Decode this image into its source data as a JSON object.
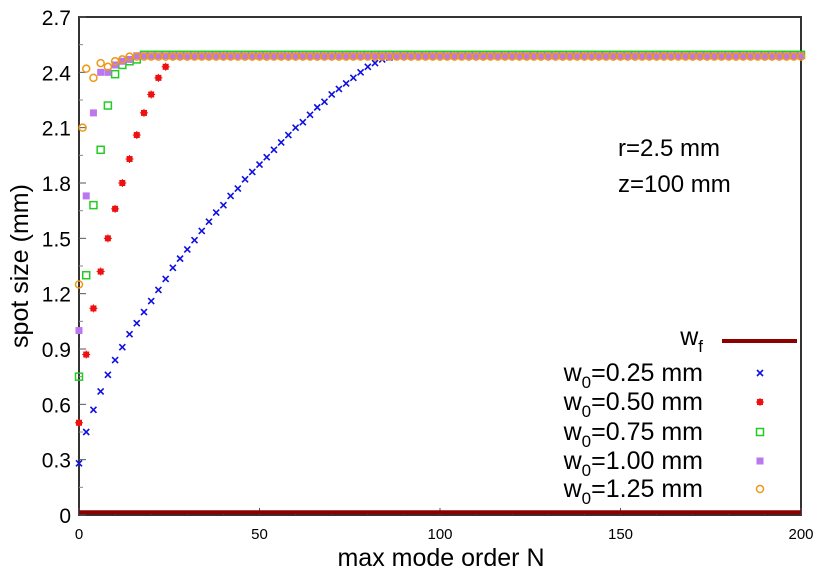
{
  "chart_data": {
    "type": "scatter",
    "title": "",
    "xlabel": "max mode order N",
    "ylabel": "spot size (mm)",
    "xlim": [
      0,
      200
    ],
    "ylim": [
      0,
      2.7
    ],
    "xticks": [
      0,
      50,
      100,
      150,
      200
    ],
    "yticks": [
      0,
      0.3,
      0.6,
      0.9,
      1.2,
      1.5,
      1.8,
      2.1,
      2.4,
      2.7
    ],
    "ytick_labels": [
      "0",
      "0.3",
      "0.6",
      "0.9",
      "1.2",
      "1.5",
      "1.8",
      "2.1",
      "2.4",
      "2.7"
    ],
    "xtick_labels": [
      "0",
      "50",
      "100",
      "150",
      "200"
    ],
    "grid": false,
    "legend_position": "lower right",
    "annotations": [
      "r=2.5 mm",
      "z=100 mm"
    ],
    "series": [
      {
        "name": "w_f",
        "label_main": "w",
        "label_sub": "f",
        "label_rest": "",
        "style": "line",
        "color": "#8b0000",
        "x": [
          0,
          200
        ],
        "y": [
          0.015,
          0.015
        ]
      },
      {
        "name": "w_0=0.25 mm",
        "label_main": "w",
        "label_sub": "0",
        "label_rest": "=0.25 mm",
        "style": "cross",
        "color": "#1010e0",
        "start": 0,
        "step": 2,
        "plateau": 2.49,
        "y": [
          0.28,
          0.45,
          0.57,
          0.67,
          0.76,
          0.84,
          0.91,
          0.98,
          1.04,
          1.1,
          1.16,
          1.22,
          1.28,
          1.34,
          1.39,
          1.44,
          1.49,
          1.54,
          1.59,
          1.64,
          1.68,
          1.73,
          1.77,
          1.82,
          1.86,
          1.9,
          1.94,
          1.98,
          2.02,
          2.06,
          2.1,
          2.13,
          2.17,
          2.21,
          2.24,
          2.28,
          2.31,
          2.34,
          2.37,
          2.4,
          2.43,
          2.45,
          2.47,
          2.48,
          2.49,
          2.49,
          2.49,
          2.49,
          2.49,
          2.49
        ]
      },
      {
        "name": "w_0=0.50 mm",
        "label_main": "w",
        "label_sub": "0",
        "label_rest": "=0.50 mm",
        "style": "star",
        "color": "#ee1111",
        "start": 0,
        "step": 2,
        "plateau": 2.49,
        "y": [
          0.5,
          0.87,
          1.12,
          1.32,
          1.5,
          1.66,
          1.8,
          1.93,
          2.06,
          2.18,
          2.28,
          2.37,
          2.43
        ]
      },
      {
        "name": "w_0=0.75 mm",
        "label_main": "w",
        "label_sub": "0",
        "label_rest": "=0.75 mm",
        "style": "square-open",
        "color": "#22cc22",
        "start": 0,
        "step": 2,
        "plateau": 2.495,
        "y": [
          0.75,
          1.3,
          1.68,
          1.98,
          2.22,
          2.39,
          2.44,
          2.46,
          2.47
        ]
      },
      {
        "name": "w_0=1.00 mm",
        "label_main": "w",
        "label_sub": "0",
        "label_rest": "=1.00 mm",
        "style": "square-filled",
        "color": "#bb77ee",
        "start": 0,
        "step": 2,
        "plateau": 2.49,
        "y": [
          1.0,
          1.73,
          2.18,
          2.4,
          2.4,
          2.44,
          2.46,
          2.47
        ]
      },
      {
        "name": "w_0=1.25 mm",
        "label_main": "w",
        "label_sub": "0",
        "label_rest": "=1.25 mm",
        "style": "circle-open",
        "color": "#ee9911",
        "x_explicit": [
          0,
          1,
          2,
          4,
          6,
          8,
          10,
          12
        ],
        "plateau": 2.485,
        "y": [
          1.25,
          2.1,
          2.42,
          2.37,
          2.45,
          2.43,
          2.46,
          2.47
        ]
      }
    ]
  }
}
